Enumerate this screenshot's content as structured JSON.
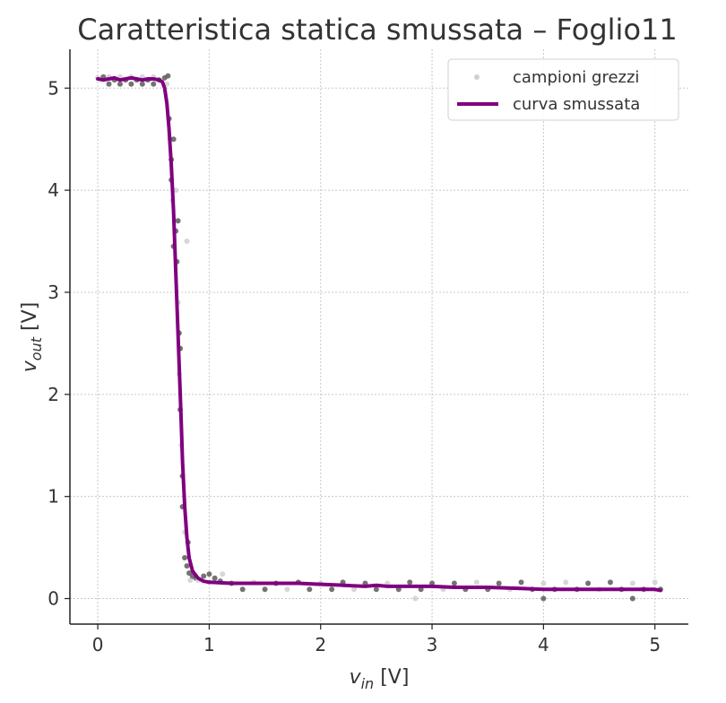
{
  "chart_data": {
    "type": "scatter",
    "title": "Caratteristica statica smussata – Foglio11",
    "xlabel": {
      "main": "v",
      "sub": "in",
      "unit": " [V]"
    },
    "ylabel": {
      "main": "v",
      "sub": "out",
      "unit": " [V]"
    },
    "xlim": [
      -0.25,
      5.3
    ],
    "ylim": [
      -0.25,
      5.38
    ],
    "xticks": [
      0,
      1,
      2,
      3,
      4,
      5
    ],
    "yticks": [
      0,
      1,
      2,
      3,
      4,
      5
    ],
    "grid": true,
    "legend_position": "top-right",
    "legend": {
      "raw": "campioni grezzi",
      "smooth": "curva smussata"
    },
    "colors": {
      "smooth": "#800080",
      "raw_light": "#d0d0d0",
      "raw_dark": "#5a5a5a"
    },
    "series": [
      {
        "name": "campioni grezzi",
        "kind": "scatter",
        "points": [
          [
            0.0,
            5.1
          ],
          [
            0.05,
            5.11
          ],
          [
            0.1,
            5.04
          ],
          [
            0.1,
            5.11
          ],
          [
            0.15,
            5.08
          ],
          [
            0.2,
            5.04
          ],
          [
            0.2,
            5.11
          ],
          [
            0.25,
            5.08
          ],
          [
            0.3,
            5.04
          ],
          [
            0.3,
            5.11
          ],
          [
            0.35,
            5.08
          ],
          [
            0.4,
            5.04
          ],
          [
            0.4,
            5.11
          ],
          [
            0.45,
            5.08
          ],
          [
            0.5,
            5.04
          ],
          [
            0.5,
            5.11
          ],
          [
            0.55,
            5.08
          ],
          [
            0.6,
            5.1
          ],
          [
            0.62,
            5.04
          ],
          [
            0.63,
            5.12
          ],
          [
            0.64,
            4.7
          ],
          [
            0.65,
            4.5
          ],
          [
            0.66,
            4.3
          ],
          [
            0.66,
            4.1
          ],
          [
            0.67,
            3.9
          ],
          [
            0.68,
            4.5
          ],
          [
            0.68,
            3.45
          ],
          [
            0.7,
            4.0
          ],
          [
            0.7,
            3.6
          ],
          [
            0.71,
            3.3
          ],
          [
            0.72,
            2.9
          ],
          [
            0.72,
            3.7
          ],
          [
            0.73,
            2.6
          ],
          [
            0.73,
            2.2
          ],
          [
            0.74,
            1.85
          ],
          [
            0.74,
            2.45
          ],
          [
            0.75,
            1.5
          ],
          [
            0.76,
            1.2
          ],
          [
            0.76,
            0.9
          ],
          [
            0.78,
            0.65
          ],
          [
            0.78,
            0.4
          ],
          [
            0.8,
            0.32
          ],
          [
            0.8,
            3.5
          ],
          [
            0.81,
            0.55
          ],
          [
            0.82,
            0.25
          ],
          [
            0.83,
            0.18
          ],
          [
            0.85,
            0.22
          ],
          [
            0.88,
            0.2
          ],
          [
            0.9,
            0.18
          ],
          [
            0.95,
            0.22
          ],
          [
            1.0,
            0.24
          ],
          [
            1.0,
            0.16
          ],
          [
            1.05,
            0.2
          ],
          [
            1.1,
            0.17
          ],
          [
            1.12,
            0.24
          ],
          [
            1.2,
            0.15
          ],
          [
            1.3,
            0.09
          ],
          [
            1.4,
            0.16
          ],
          [
            1.5,
            0.09
          ],
          [
            1.6,
            0.15
          ],
          [
            1.7,
            0.09
          ],
          [
            1.8,
            0.16
          ],
          [
            1.9,
            0.09
          ],
          [
            2.0,
            0.15
          ],
          [
            2.1,
            0.09
          ],
          [
            2.2,
            0.16
          ],
          [
            2.3,
            0.09
          ],
          [
            2.4,
            0.15
          ],
          [
            2.5,
            0.09
          ],
          [
            2.6,
            0.15
          ],
          [
            2.7,
            0.09
          ],
          [
            2.8,
            0.16
          ],
          [
            2.85,
            0.0
          ],
          [
            2.9,
            0.09
          ],
          [
            3.0,
            0.15
          ],
          [
            3.1,
            0.09
          ],
          [
            3.2,
            0.15
          ],
          [
            3.3,
            0.09
          ],
          [
            3.4,
            0.16
          ],
          [
            3.5,
            0.09
          ],
          [
            3.6,
            0.15
          ],
          [
            3.7,
            0.09
          ],
          [
            3.8,
            0.16
          ],
          [
            3.9,
            0.09
          ],
          [
            4.0,
            0.15
          ],
          [
            4.0,
            0.0
          ],
          [
            4.1,
            0.09
          ],
          [
            4.2,
            0.16
          ],
          [
            4.3,
            0.09
          ],
          [
            4.4,
            0.15
          ],
          [
            4.5,
            0.09
          ],
          [
            4.6,
            0.16
          ],
          [
            4.7,
            0.09
          ],
          [
            4.8,
            0.15
          ],
          [
            4.8,
            0.0
          ],
          [
            4.9,
            0.09
          ],
          [
            5.0,
            0.16
          ],
          [
            5.05,
            0.09
          ]
        ]
      },
      {
        "name": "curva smussata",
        "kind": "line",
        "points": [
          [
            0.0,
            5.09
          ],
          [
            0.05,
            5.08
          ],
          [
            0.1,
            5.09
          ],
          [
            0.15,
            5.1
          ],
          [
            0.2,
            5.08
          ],
          [
            0.25,
            5.09
          ],
          [
            0.3,
            5.1
          ],
          [
            0.35,
            5.09
          ],
          [
            0.4,
            5.08
          ],
          [
            0.45,
            5.09
          ],
          [
            0.5,
            5.09
          ],
          [
            0.55,
            5.08
          ],
          [
            0.58,
            5.06
          ],
          [
            0.6,
            5.0
          ],
          [
            0.62,
            4.85
          ],
          [
            0.64,
            4.6
          ],
          [
            0.66,
            4.25
          ],
          [
            0.68,
            3.8
          ],
          [
            0.7,
            3.2
          ],
          [
            0.72,
            2.6
          ],
          [
            0.74,
            2.0
          ],
          [
            0.75,
            1.7
          ],
          [
            0.76,
            1.35
          ],
          [
            0.78,
            0.9
          ],
          [
            0.8,
            0.6
          ],
          [
            0.82,
            0.4
          ],
          [
            0.85,
            0.27
          ],
          [
            0.9,
            0.2
          ],
          [
            0.95,
            0.17
          ],
          [
            1.0,
            0.16
          ],
          [
            1.2,
            0.15
          ],
          [
            1.5,
            0.15
          ],
          [
            1.8,
            0.15
          ],
          [
            2.0,
            0.14
          ],
          [
            2.2,
            0.13
          ],
          [
            2.4,
            0.12
          ],
          [
            2.5,
            0.13
          ],
          [
            2.6,
            0.12
          ],
          [
            2.8,
            0.12
          ],
          [
            3.0,
            0.12
          ],
          [
            3.2,
            0.11
          ],
          [
            3.5,
            0.11
          ],
          [
            3.8,
            0.1
          ],
          [
            4.0,
            0.09
          ],
          [
            4.2,
            0.09
          ],
          [
            4.5,
            0.09
          ],
          [
            4.8,
            0.09
          ],
          [
            5.0,
            0.09
          ],
          [
            5.05,
            0.08
          ]
        ]
      }
    ]
  }
}
